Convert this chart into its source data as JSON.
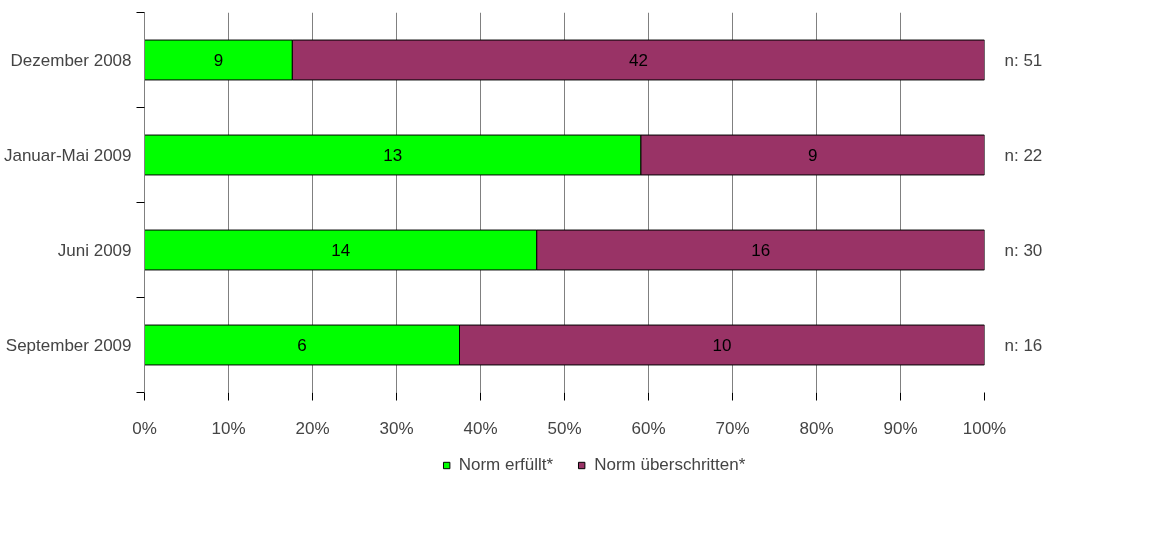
{
  "chart_data": {
    "type": "bar",
    "orientation": "horizontal",
    "stacked": true,
    "categories": [
      "Dezember 2008",
      "Januar-Mai 2009",
      "Juni 2009",
      "September 2009"
    ],
    "series": [
      {
        "name": "Norm erfüllt*",
        "color": "#00ff00",
        "values": [
          17.6,
          59.1,
          46.7,
          37.5
        ]
      },
      {
        "name": "Norm überschritten*",
        "color": "#993366",
        "values": [
          82.4,
          40.9,
          53.3,
          62.5
        ]
      }
    ],
    "annotations": [
      "9",
      "42",
      "13",
      "9",
      "14",
      "16",
      "6",
      "10",
      "n: 51",
      "n: 22",
      "n: 30",
      "n: 16"
    ],
    "xlim": [
      0,
      100
    ],
    "xticks": [
      {
        "value": 0,
        "label": "0%"
      },
      {
        "value": 10,
        "label": "10%"
      },
      {
        "value": 20,
        "label": "20%"
      },
      {
        "value": 30,
        "label": "30%"
      },
      {
        "value": 40,
        "label": "40%"
      },
      {
        "value": 50,
        "label": "50%"
      },
      {
        "value": 60,
        "label": "60%"
      },
      {
        "value": 70,
        "label": "70%"
      },
      {
        "value": 80,
        "label": "80%"
      },
      {
        "value": 90,
        "label": "90%"
      },
      {
        "value": 100,
        "label": "100%"
      }
    ],
    "grid": "x",
    "legend": "bottom"
  }
}
